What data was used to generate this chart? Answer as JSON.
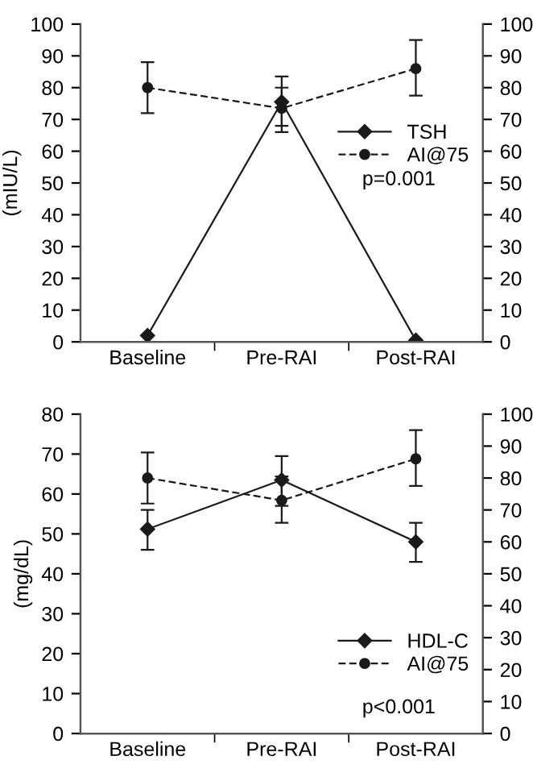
{
  "chart_data": [
    {
      "type": "line",
      "ylabel": "(mIU/L)",
      "categories": [
        "Baseline",
        "Pre-RAI",
        "Post-RAI"
      ],
      "ylim": [
        0,
        100
      ],
      "yticks": [
        0,
        10,
        20,
        30,
        40,
        50,
        60,
        70,
        80,
        90,
        100
      ],
      "y2lim": [
        0,
        100
      ],
      "y2ticks": [
        0,
        10,
        20,
        30,
        40,
        50,
        60,
        70,
        80,
        90,
        100
      ],
      "legend": "right",
      "grid": false,
      "annotations": [
        "p=0.001"
      ],
      "series": [
        {
          "name": "TSH",
          "color": "#1a1a1a",
          "marker": "diamond",
          "line_style": "solid",
          "values": [
            2,
            75.5,
            0.5
          ],
          "errors": [
            null,
            [
              68,
              80
            ],
            null
          ]
        },
        {
          "name": "AI@75",
          "color": "#1a1a1a",
          "marker": "circle",
          "line_style": "dashed",
          "axis": "y2",
          "values": [
            80,
            73.5,
            86
          ],
          "errors": [
            [
              72,
              88
            ],
            [
              66,
              83.5
            ],
            [
              77.5,
              95
            ]
          ]
        }
      ]
    },
    {
      "type": "line",
      "ylabel": "(mg/dL)",
      "categories": [
        "Baseline",
        "Pre-RAI",
        "Post-RAI"
      ],
      "ylim": [
        0,
        80
      ],
      "yticks": [
        0,
        10,
        20,
        30,
        40,
        50,
        60,
        70,
        80
      ],
      "y2lim": [
        0,
        100
      ],
      "y2ticks": [
        0,
        10,
        20,
        30,
        40,
        50,
        60,
        70,
        80,
        90,
        100
      ],
      "legend": "bottom right",
      "grid": false,
      "annotations": [
        "p<0.001"
      ],
      "series": [
        {
          "name": "HDL-C",
          "color": "#1a1a1a",
          "marker": "diamond",
          "line_style": "solid",
          "values": [
            51.2,
            63.5,
            48
          ],
          "errors": [
            [
              46,
              56
            ],
            [
              57,
              69.5
            ],
            [
              43,
              52.8
            ]
          ]
        },
        {
          "name": "AI@75",
          "color": "#1a1a1a",
          "marker": "circle",
          "line_style": "dashed",
          "axis": "y2",
          "values": [
            80,
            73,
            86
          ],
          "errors": [
            [
              72,
              88
            ],
            [
              66,
              80.5
            ],
            [
              77.5,
              95
            ]
          ]
        }
      ]
    }
  ]
}
